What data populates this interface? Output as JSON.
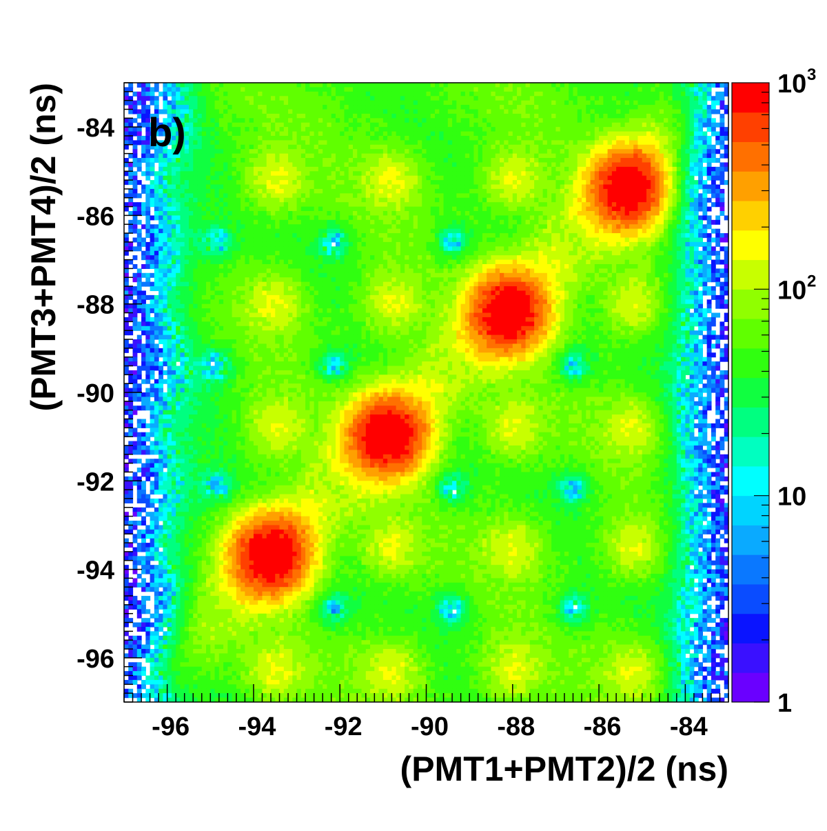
{
  "chart_data": {
    "type": "heatmap",
    "panel_label": "b)",
    "xlabel": "(PMT1+PMT2)/2 (ns)",
    "ylabel": "(PMT3+PMT4)/2 (ns)",
    "xlim": [
      -97,
      -83
    ],
    "ylim": [
      -97,
      -83
    ],
    "x_ticks": [
      -96,
      -94,
      -92,
      -90,
      -88,
      -86,
      -84
    ],
    "y_ticks": [
      -96,
      -94,
      -92,
      -90,
      -88,
      -86,
      -84
    ],
    "z_scale": "log",
    "zlim": [
      1,
      1000
    ],
    "colorbar_labels": [
      {
        "value": 1,
        "base": "1",
        "exp": ""
      },
      {
        "value": 10,
        "base": "10",
        "exp": ""
      },
      {
        "value": 100,
        "base": "10",
        "exp": "2"
      },
      {
        "value": 1000,
        "base": "10",
        "exp": "3"
      }
    ],
    "peaks": [
      {
        "x": -93.6,
        "y": -93.7,
        "value": 1000
      },
      {
        "x": -90.9,
        "y": -91.0,
        "value": 1000
      },
      {
        "x": -88.1,
        "y": -88.2,
        "value": 1000
      },
      {
        "x": -85.3,
        "y": -85.4,
        "value": 1000
      }
    ],
    "secondary_blobs": {
      "x_centers": [
        -96.2,
        -93.5,
        -90.8,
        -88.0,
        -85.2
      ],
      "y_centers": [
        -96.3,
        -93.5,
        -90.8,
        -88.0,
        -85.2
      ],
      "value": 150
    },
    "background_value": 60,
    "edge_low_value": 2
  }
}
